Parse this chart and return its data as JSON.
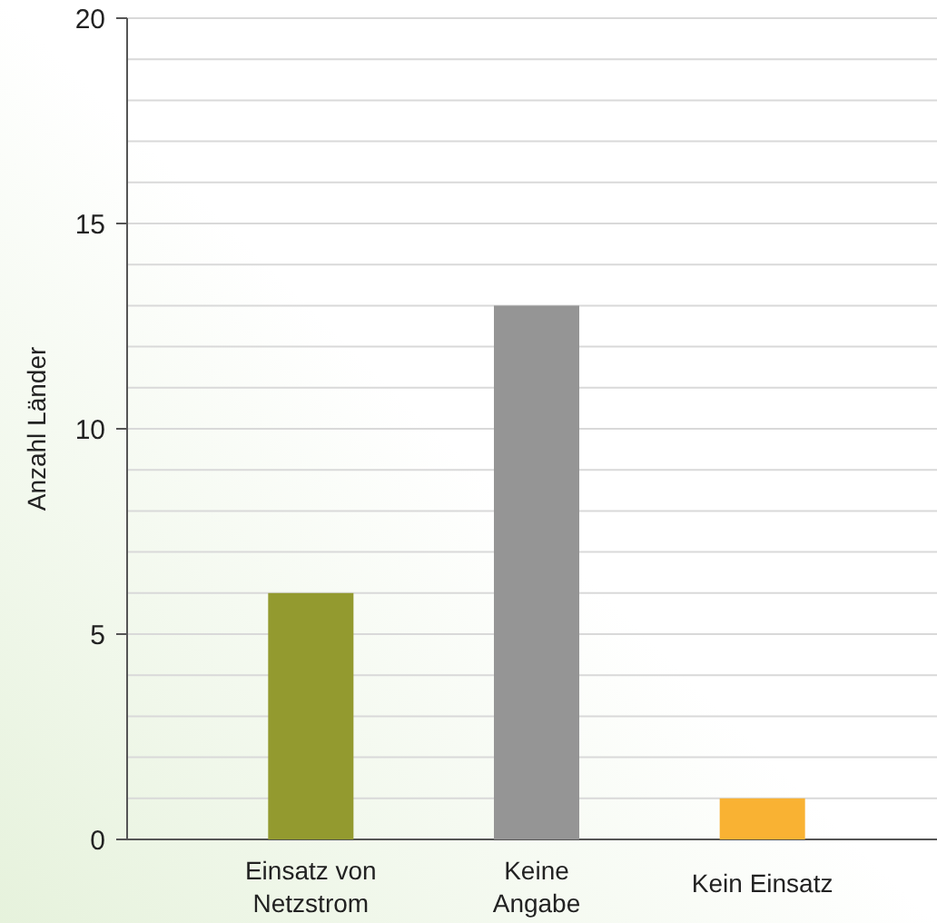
{
  "chart_data": {
    "type": "bar",
    "ylabel": "Anzahl Länder",
    "categories": [
      "Einsatz von\nNetzstrom",
      "Keine\nAngabe",
      "Kein Einsatz"
    ],
    "values": [
      6,
      13,
      1
    ],
    "colors": [
      "#939a2f",
      "#959595",
      "#f9b233"
    ],
    "ylim": [
      0,
      20
    ],
    "yticks": [
      0,
      {
        "value": 1,
        "label": null
      },
      {
        "value": 2,
        "label": null
      },
      {
        "value": 3,
        "label": null
      },
      {
        "value": 4,
        "label": null
      },
      5,
      {
        "value": 6,
        "label": null
      },
      {
        "value": 7,
        "label": null
      },
      {
        "value": 8,
        "label": null
      },
      {
        "value": 9,
        "label": null
      },
      10,
      {
        "value": 11,
        "label": null
      },
      {
        "value": 12,
        "label": null
      },
      {
        "value": 13,
        "label": null
      },
      {
        "value": 14,
        "label": null
      },
      15,
      {
        "value": 16,
        "label": null
      },
      {
        "value": 17,
        "label": null
      },
      {
        "value": 18,
        "label": null
      },
      {
        "value": 19,
        "label": null
      },
      20
    ],
    "grid": "y"
  }
}
